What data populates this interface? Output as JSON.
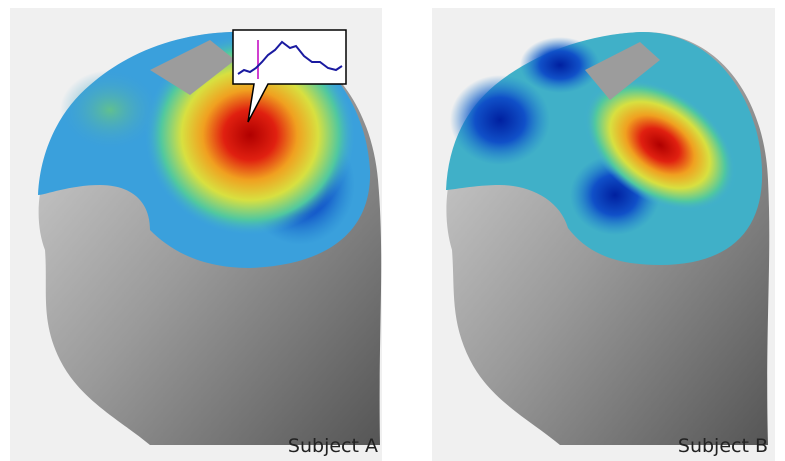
{
  "panels": [
    {
      "label": "Subject A"
    },
    {
      "label": "Subject B"
    }
  ]
}
